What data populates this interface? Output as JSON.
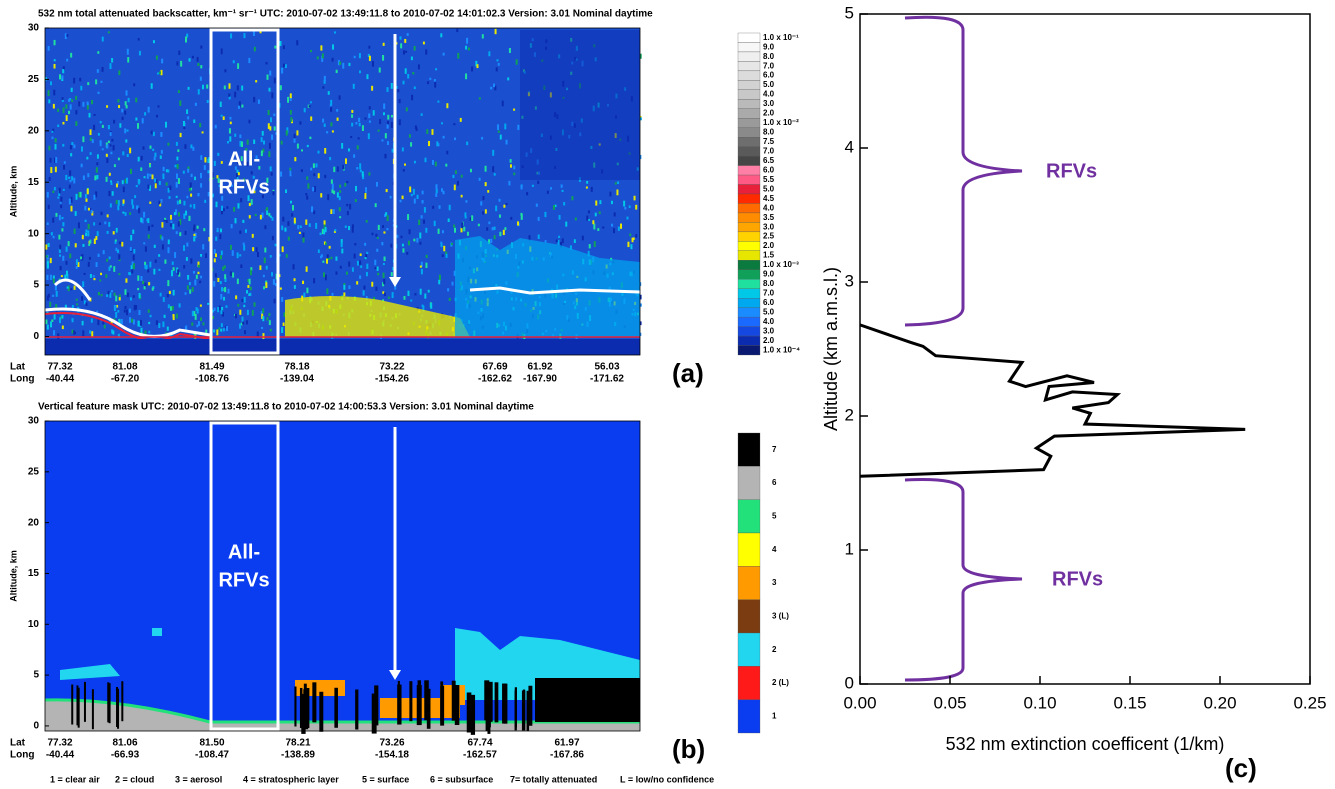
{
  "chart_data": [
    {
      "type": "curtain",
      "panel_label": "(a)",
      "title": "532 nm  total attenuated backscatter, km⁻¹ sr⁻¹   UTC:  2010-07-02 13:49:11.8  to  2010-07-02 14:01:02.3    Version: 3.01  Nominal daytime",
      "ylabel": "Altitude, km",
      "ylim": [
        -1.8,
        30
      ],
      "yticks": [
        0,
        5,
        10,
        15,
        20,
        25,
        30
      ],
      "lat_label": "Lat",
      "long_label": "Long",
      "lat": [
        "77.32",
        "81.08",
        "81.49",
        "78.18",
        "73.22",
        "67.69",
        "61.92",
        "56.03"
      ],
      "long": [
        "-40.44",
        "-67.20",
        "-108.76",
        "-139.04",
        "-154.26",
        "-162.62",
        "-167.90",
        "-171.62"
      ],
      "annotation": [
        "All-",
        "RFVs"
      ],
      "colorbar": {
        "labels": [
          "1.0 x 10⁻¹",
          "9.0",
          "8.0",
          "7.0",
          "6.0",
          "5.0",
          "4.0",
          "3.0",
          "2.0",
          "1.0 x 10⁻²",
          "8.0",
          "7.5",
          "7.0",
          "6.5",
          "6.0",
          "5.5",
          "5.0",
          "4.5",
          "4.0",
          "3.5",
          "3.0",
          "2.5",
          "2.0",
          "1.5",
          "1.0 x 10⁻³",
          "9.0",
          "8.0",
          "7.0",
          "6.0",
          "5.0",
          "4.0",
          "3.0",
          "2.0",
          "1.0 x 10⁻⁴"
        ],
        "colors": [
          "#ffffff",
          "#f7f7f7",
          "#efefef",
          "#e6e6e6",
          "#dcdcdc",
          "#d2d2d2",
          "#c8c8c8",
          "#bababa",
          "#aaaaaa",
          "#9a9a9a",
          "#8a8a8a",
          "#6e6e6e",
          "#5a5a5a",
          "#464646",
          "#ff7fa6",
          "#ff5a86",
          "#e8203a",
          "#ff2a00",
          "#ff6a00",
          "#ff8c00",
          "#ffa500",
          "#ffd200",
          "#ffff00",
          "#e6e600",
          "#0b7a3e",
          "#10a05a",
          "#20e0a0",
          "#00c8e6",
          "#00a8f0",
          "#1a8cff",
          "#1a6aff",
          "#1448e0",
          "#0c2cb0",
          "#0a1a70"
        ]
      }
    },
    {
      "type": "feature_mask",
      "panel_label": "(b)",
      "title": "Vertical feature mask  UTC:  2010-07-02   13:49:11.8 to 2010-07-02   14:00:53.3    Version: 3.01   Nominal daytime",
      "ylabel": "Altitude, km",
      "ylim": [
        -0.5,
        30
      ],
      "yticks": [
        0,
        5,
        10,
        15,
        20,
        25,
        30
      ],
      "lat_label": "Lat",
      "long_label": "Long",
      "lat": [
        "77.32",
        "81.06",
        "81.50",
        "78.21",
        "73.26",
        "67.74",
        "61.97"
      ],
      "long": [
        "-40.44",
        "-66.93",
        "-108.47",
        "-138.89",
        "-154.18",
        "-162.57",
        "-167.86"
      ],
      "annotation": [
        "All-",
        "RFVs"
      ],
      "colorbar": {
        "labels": [
          "7",
          "6",
          "5",
          "4",
          "3",
          "3 (L)",
          "2",
          "2 (L)",
          "1"
        ],
        "colors": [
          "#000000",
          "#b4b4b4",
          "#22e07a",
          "#ffff00",
          "#ff9a00",
          "#7a3c10",
          "#22d6f0",
          "#ff1a1a",
          "#0a3cf0"
        ]
      },
      "legend_note": [
        "1 = clear air",
        "2 = cloud",
        "3 = aerosol",
        "4 = stratospheric layer",
        "5 = surface",
        "6 = subsurface",
        "7= totally attenuated",
        "L = low/no confidence"
      ]
    },
    {
      "type": "line",
      "panel_label": "(c)",
      "xlabel": "532 nm extinction coefficent (1/km)",
      "ylabel": "Altitude (km a.m.s.l.)",
      "xlim": [
        0,
        0.25
      ],
      "ylim": [
        0,
        5
      ],
      "xticks": [
        {
          "value": 0,
          "label": "0.00"
        },
        {
          "value": 0.05,
          "label": "0.05"
        },
        {
          "value": 0.1,
          "label": "0.10"
        },
        {
          "value": 0.15,
          "label": "0.15"
        },
        {
          "value": 0.2,
          "label": "0.20"
        },
        {
          "value": 0.25,
          "label": "0.25"
        }
      ],
      "yticks": [
        0,
        1,
        2,
        3,
        4,
        5
      ],
      "annotations": [
        "RFVs",
        "RFVs"
      ],
      "series": [
        {
          "color": "#000000",
          "x": [
            0,
            0.102,
            0.106,
            0.098,
            0.108,
            0.214,
            0.125,
            0.128,
            0.118,
            0.138,
            0.143,
            0.118,
            0.103,
            0.105,
            0.13,
            0.115,
            0.092,
            0.083,
            0.09,
            0.042,
            0.035,
            0.028,
            0
          ],
          "y": [
            1.55,
            1.6,
            1.7,
            1.76,
            1.85,
            1.9,
            1.94,
            2.02,
            2.06,
            2.1,
            2.16,
            2.18,
            2.12,
            2.22,
            2.25,
            2.3,
            2.22,
            2.26,
            2.4,
            2.45,
            2.52,
            2.55,
            2.68
          ]
        }
      ]
    }
  ]
}
